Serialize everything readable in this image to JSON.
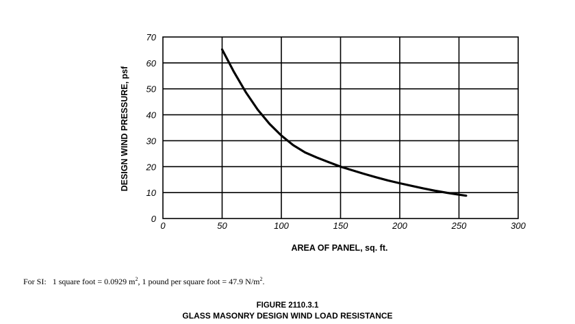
{
  "chart_data": {
    "type": "line",
    "title": "",
    "xlabel": "AREA OF PANEL, sq. ft.",
    "ylabel": "DESIGN WIND PRESSURE, psf",
    "xlim": [
      0,
      300
    ],
    "ylim": [
      0,
      70
    ],
    "xticks": [
      "0",
      "50",
      "100",
      "150",
      "200",
      "250",
      "300"
    ],
    "yticks": [
      "0",
      "10",
      "20",
      "30",
      "40",
      "50",
      "60",
      "70"
    ],
    "grid": true,
    "series": [
      {
        "x": [
          50,
          60,
          70,
          80,
          90,
          100,
          110,
          120,
          130,
          140,
          150,
          160,
          170,
          180,
          190,
          200,
          210,
          220,
          230,
          240,
          250,
          256
        ],
        "values": [
          65.2,
          56.5,
          48.7,
          42.0,
          36.5,
          32.0,
          28.3,
          25.5,
          23.5,
          21.7,
          20.0,
          18.6,
          17.2,
          15.9,
          14.7,
          13.6,
          12.6,
          11.6,
          10.7,
          9.9,
          9.2,
          8.8
        ]
      }
    ]
  },
  "note": {
    "prefix": "For SI:",
    "part1": "1 square foot = 0.0929 m",
    "exp1": "2",
    "part2": ", 1 pound per square foot = 47.9 N/m",
    "exp2": "2",
    "end": "."
  },
  "figure": {
    "number": "FIGURE 2110.3.1",
    "title": "GLASS MASONRY DESIGN WIND LOAD RESISTANCE"
  }
}
